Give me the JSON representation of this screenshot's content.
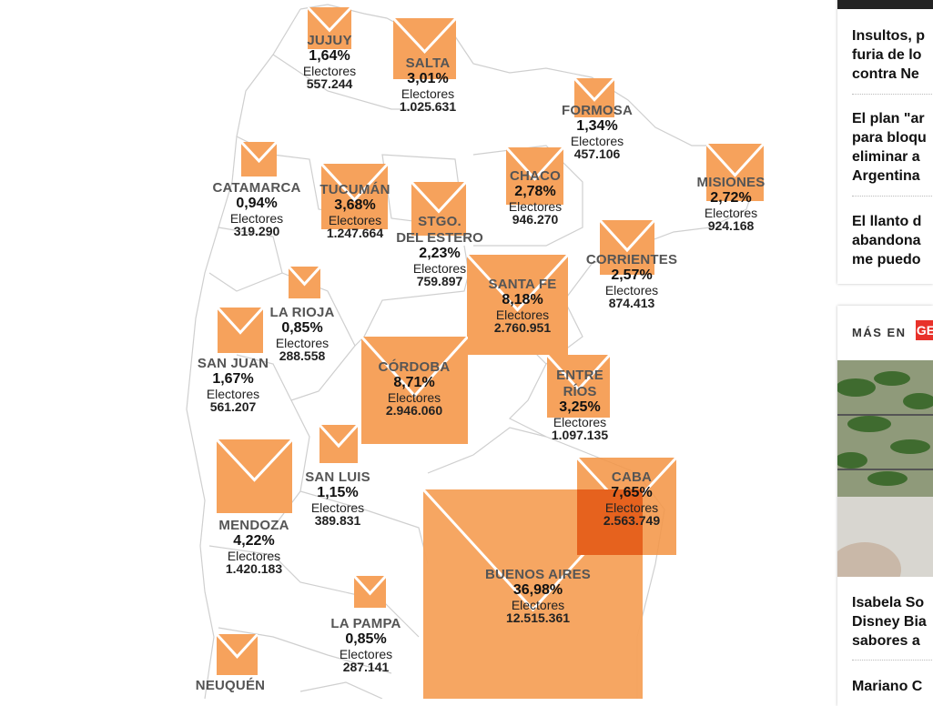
{
  "colors": {
    "envelope": "#f6a25c",
    "overlap": "#e6621e",
    "name": "#555555"
  },
  "electores_label": "Electores",
  "provinces": [
    {
      "id": "jujuy",
      "name": "JUJUY",
      "pct": "1,64%",
      "voters": "557.244"
    },
    {
      "id": "salta",
      "name": "SALTA",
      "pct": "3,01%",
      "voters": "1.025.631"
    },
    {
      "id": "formosa",
      "name": "FORMOSA",
      "pct": "1,34%",
      "voters": "457.106"
    },
    {
      "id": "catamarca",
      "name": "CATAMARCA",
      "pct": "0,94%",
      "voters": "319.290"
    },
    {
      "id": "tucuman",
      "name": "TUCUMÁN",
      "pct": "3,68%",
      "voters": "1.247.664"
    },
    {
      "id": "stgo",
      "name": "STGO.",
      "name2": "DEL ESTERO",
      "pct": "2,23%",
      "voters": "759.897"
    },
    {
      "id": "chaco",
      "name": "CHACO",
      "pct": "2,78%",
      "voters": "946.270"
    },
    {
      "id": "misiones",
      "name": "MISIONES",
      "pct": "2,72%",
      "voters": "924.168"
    },
    {
      "id": "corrientes",
      "name": "CORRIENTES",
      "pct": "2,57%",
      "voters": "874.413"
    },
    {
      "id": "larioja",
      "name": "LA RIOJA",
      "pct": "0,85%",
      "voters": "288.558"
    },
    {
      "id": "sanjuan",
      "name": "SAN JUAN",
      "pct": "1,67%",
      "voters": "561.207"
    },
    {
      "id": "santafe",
      "name": "SANTA FE",
      "pct": "8,18%",
      "voters": "2.760.951"
    },
    {
      "id": "cordoba",
      "name": "CÓRDOBA",
      "pct": "8,71%",
      "voters": "2.946.060"
    },
    {
      "id": "entrerios",
      "name": "ENTRE",
      "name2": "RÍOS",
      "pct": "3,25%",
      "voters": "1.097.135"
    },
    {
      "id": "sanluis",
      "name": "SAN LUIS",
      "pct": "1,15%",
      "voters": "389.831"
    },
    {
      "id": "mendoza",
      "name": "MENDOZA",
      "pct": "4,22%",
      "voters": "1.420.183"
    },
    {
      "id": "caba",
      "name": "CABA",
      "pct": "7,65%",
      "voters": "2.563.749"
    },
    {
      "id": "buenosaires",
      "name": "BUENOS AIRES",
      "pct": "36,98%",
      "voters": "12.515.361"
    },
    {
      "id": "lapampa",
      "name": "LA PAMPA",
      "pct": "0,85%",
      "voters": "287.141"
    },
    {
      "id": "neuquen",
      "name": "NEUQUÉN",
      "pct": "",
      "voters": ""
    }
  ],
  "sidebar": {
    "headlines": [
      {
        "line1": "Insultos, p",
        "line2": "furia de lo",
        "line3": "contra Ne"
      },
      {
        "line1": "El plan \"ar",
        "line2": "para bloqu",
        "line3": "eliminar a",
        "line4": "Argentina"
      },
      {
        "line1": "El llanto d",
        "line2": "abandona",
        "line3": "me puedo"
      }
    ],
    "mas_en": "MÁS EN",
    "mas_logo": "GE",
    "bottom_headlines": [
      {
        "line1": "Isabela So",
        "line2": "Disney Bia",
        "line3": "sabores a"
      },
      {
        "line1": "Mariano C"
      }
    ]
  }
}
